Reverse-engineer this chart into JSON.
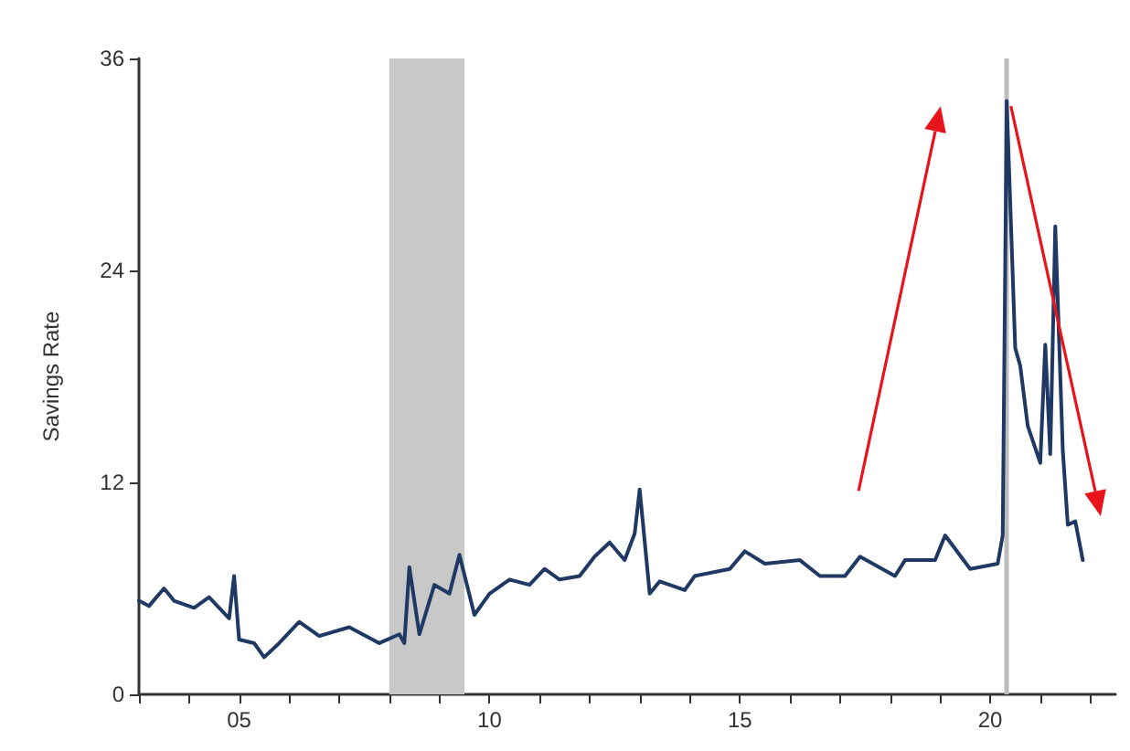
{
  "chart_data": {
    "type": "line",
    "ylabel": "Savings Rate",
    "x": [
      2003.0,
      2003.2,
      2003.5,
      2003.7,
      2004.1,
      2004.4,
      2004.8,
      2004.9,
      2005.0,
      2005.3,
      2005.5,
      2005.8,
      2006.2,
      2006.6,
      2007.2,
      2007.8,
      2008.2,
      2008.3,
      2008.4,
      2008.6,
      2008.9,
      2009.2,
      2009.4,
      2009.7,
      2010.0,
      2010.4,
      2010.8,
      2011.1,
      2011.4,
      2011.8,
      2012.1,
      2012.4,
      2012.7,
      2012.9,
      2013.0,
      2013.2,
      2013.4,
      2013.9,
      2014.1,
      2014.8,
      2015.1,
      2015.5,
      2016.2,
      2016.6,
      2017.1,
      2017.4,
      2018.1,
      2018.3,
      2018.9,
      2019.1,
      2019.6,
      2020.15,
      2020.25,
      2020.33,
      2020.5,
      2020.6,
      2020.75,
      2021.0,
      2021.1,
      2021.2,
      2021.3,
      2021.45,
      2021.55,
      2021.7,
      2021.85
    ],
    "series": [
      {
        "color": "#1f3864",
        "values": [
          5.3,
          5.0,
          6.0,
          5.3,
          4.9,
          5.5,
          4.3,
          6.7,
          3.1,
          2.9,
          2.1,
          2.9,
          4.1,
          3.3,
          3.8,
          2.9,
          3.4,
          2.9,
          7.2,
          3.4,
          6.2,
          5.7,
          7.9,
          4.5,
          5.7,
          6.5,
          6.2,
          7.1,
          6.5,
          6.7,
          7.8,
          8.6,
          7.6,
          9.1,
          11.6,
          5.7,
          6.4,
          5.9,
          6.7,
          7.1,
          8.1,
          7.4,
          7.6,
          6.7,
          6.7,
          7.8,
          6.7,
          7.6,
          7.6,
          9.0,
          7.1,
          7.4,
          9.0,
          33.6,
          19.6,
          18.6,
          15.2,
          13.1,
          19.8,
          13.6,
          26.5,
          13.8,
          9.6,
          9.8,
          7.6
        ]
      }
    ],
    "xlim": [
      2003,
      2022.5
    ],
    "xticks": [
      {
        "value": 2003,
        "label": null
      },
      {
        "value": 2004,
        "label": null
      },
      {
        "value": 2005,
        "label": "05"
      },
      {
        "value": 2006,
        "label": null
      },
      {
        "value": 2007,
        "label": null
      },
      {
        "value": 2008,
        "label": null
      },
      {
        "value": 2009,
        "label": null
      },
      {
        "value": 2010,
        "label": "10"
      },
      {
        "value": 2011,
        "label": null
      },
      {
        "value": 2012,
        "label": null
      },
      {
        "value": 2013,
        "label": null
      },
      {
        "value": 2014,
        "label": null
      },
      {
        "value": 2015,
        "label": "15"
      },
      {
        "value": 2016,
        "label": null
      },
      {
        "value": 2017,
        "label": null
      },
      {
        "value": 2018,
        "label": null
      },
      {
        "value": 2019,
        "label": null
      },
      {
        "value": 2020,
        "label": "20"
      },
      {
        "value": 2021,
        "label": null
      },
      {
        "value": 2022,
        "label": null
      }
    ],
    "ylim": [
      0,
      36
    ],
    "yticks": [
      0,
      12,
      24,
      36
    ],
    "grid": false,
    "marker": "none",
    "line_style": "solid",
    "ref_lines": [
      {
        "axis": "x",
        "value": 2020.3,
        "color": "#bdbdbd"
      }
    ],
    "bands": [
      {
        "axis": "x",
        "from": 2008.0,
        "to": 2009.5,
        "color": "#c8c8c8"
      }
    ]
  }
}
